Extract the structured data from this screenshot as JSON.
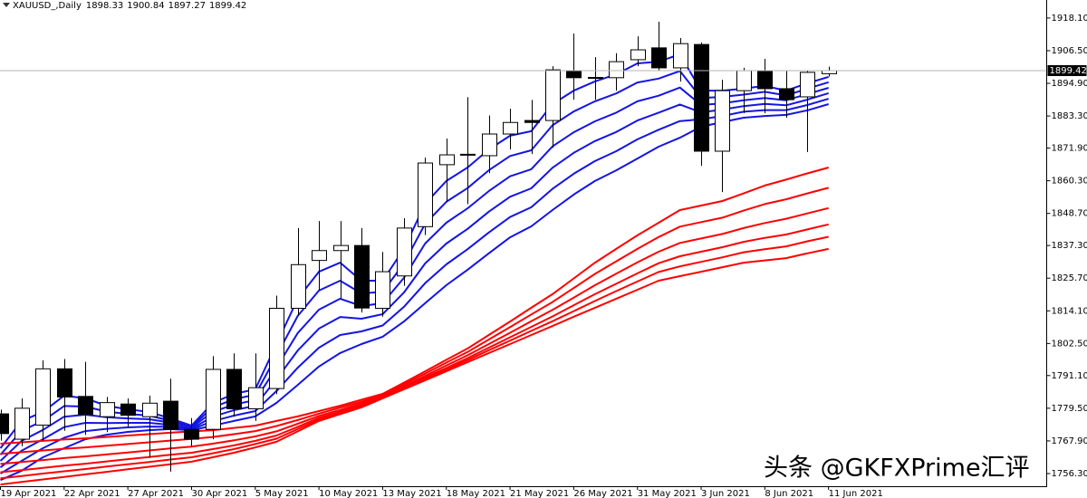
{
  "chart_data": {
    "type": "candlestick",
    "symbol": "XAUUSD_,Daily",
    "watermark": "头条 @GKFXPrime汇评",
    "categories": [
      "19 Apr 2021",
      null,
      null,
      "22 Apr 2021",
      null,
      null,
      "27 Apr 2021",
      null,
      null,
      "30 Apr 2021",
      null,
      null,
      "5 May 2021",
      null,
      null,
      "10 May 2021",
      null,
      null,
      "13 May 2021",
      null,
      null,
      "18 May 2021",
      null,
      null,
      "21 May 2021",
      null,
      null,
      "26 May 2021",
      null,
      null,
      "31 May 2021",
      null,
      null,
      "3 Jun 2021",
      null,
      null,
      "8 Jun 2021",
      null,
      null,
      "11 Jun 2021"
    ],
    "open": [
      1777.5,
      1768.5,
      1773.5,
      1793.5,
      1783.7,
      1776.5,
      1781,
      1776.5,
      1782,
      1772,
      1772,
      1793.3,
      1779.3,
      1786.5,
      1815,
      1832,
      1835.5,
      1837.3,
      1815,
      1826.5,
      1844,
      1866,
      1869.5,
      1869.2,
      1876.9,
      1881.7,
      1881.7,
      1899.4,
      1896.8,
      1896.9,
      1903.3,
      1907.5,
      1900.4,
      1908.7,
      1870.8,
      1892.3,
      1899.4,
      1893,
      1890.1,
      1898.33
    ],
    "high": [
      1779,
      1783,
      1796.5,
      1797,
      1796,
      1783.5,
      1783,
      1784,
      1790,
      1776,
      1798,
      1799,
      1799,
      1819.5,
      1843.5,
      1846,
      1846,
      1843.5,
      1835,
      1847,
      1868.5,
      1875.3,
      1890,
      1883.5,
      1885.9,
      1889,
      1901,
      1912.6,
      1904.2,
      1905.6,
      1911.6,
      1916.8,
      1911,
      1909.4,
      1896.2,
      1900.4,
      1903.6,
      1899.4,
      1899.4,
      1900.84
    ],
    "low": [
      1768,
      1766,
      1768,
      1771.5,
      1770,
      1771,
      1773,
      1762,
      1757,
      1766,
      1768.5,
      1776.5,
      1775,
      1784.5,
      1812.5,
      1821.5,
      1818.5,
      1813.5,
      1812,
      1823,
      1841,
      1853,
      1852,
      1863,
      1871.4,
      1869.8,
      1872,
      1889.1,
      1889.1,
      1892.3,
      1901,
      1899.4,
      1895.5,
      1865.6,
      1856.3,
      1884.3,
      1884.3,
      1882.7,
      1870.5,
      1897.27
    ],
    "close": [
      1770.5,
      1779.5,
      1793.5,
      1783.5,
      1777.3,
      1781.5,
      1777,
      1781.3,
      1772,
      1768.5,
      1793.3,
      1779.3,
      1786.8,
      1815,
      1830.5,
      1835.5,
      1837.3,
      1815.1,
      1828,
      1843.5,
      1866.6,
      1869.5,
      1869.7,
      1876.9,
      1881,
      1881,
      1899.7,
      1896.9,
      1897,
      1902.6,
      1906.8,
      1900.4,
      1909,
      1870.8,
      1892.3,
      1899.4,
      1893,
      1889.1,
      1898.8,
      1899.42
    ],
    "up_color": "#ffffff",
    "down_color": "#000000",
    "series": [
      {
        "color": "#1414e6",
        "values": [
          1765.3,
          1775.0,
          1778.2,
          1784.0,
          1783.0,
          1780.4,
          1779.1,
          1778.2,
          1775.9,
          1773.3,
          1781.4,
          1784.6,
          1786.2,
          1802.3,
          1818.4,
          1828.0,
          1831.2,
          1824.8,
          1824.8,
          1836.1,
          1852.1,
          1860.2,
          1865.0,
          1871.4,
          1876.3,
          1877.9,
          1887.5,
          1892.3,
          1895.6,
          1898.1,
          1902.0,
          1902.6,
          1905.2,
          1892.3,
          1892.3,
          1893.0,
          1894.0,
          1892.3,
          1894.9,
          1897.2
        ]
      },
      {
        "color": "#1414e6",
        "values": [
          1763.0,
          1771.5,
          1775.0,
          1780.3,
          1780.1,
          1778.3,
          1777.5,
          1776.9,
          1775.1,
          1773.0,
          1779.8,
          1782.7,
          1784.3,
          1798.1,
          1812.3,
          1821.3,
          1824.8,
          1820.3,
          1820.8,
          1830.9,
          1845.0,
          1852.8,
          1857.7,
          1864.0,
          1869.1,
          1871.1,
          1880.0,
          1884.9,
          1888.5,
          1891.3,
          1895.2,
          1896.6,
          1899.3,
          1889.7,
          1890.1,
          1890.9,
          1891.9,
          1890.6,
          1893.0,
          1895.3
        ]
      },
      {
        "color": "#1414e6",
        "values": [
          1760.8,
          1767.9,
          1771.8,
          1776.5,
          1777.2,
          1776.3,
          1775.9,
          1775.6,
          1774.4,
          1772.7,
          1778.2,
          1780.8,
          1782.4,
          1793.9,
          1806.2,
          1814.5,
          1818.4,
          1815.8,
          1816.8,
          1825.8,
          1838.0,
          1845.4,
          1850.5,
          1856.6,
          1861.9,
          1864.4,
          1872.5,
          1877.5,
          1881.4,
          1884.5,
          1888.5,
          1890.5,
          1893.4,
          1887.2,
          1887.8,
          1888.9,
          1889.7,
          1888.9,
          1891.1,
          1893.3
        ]
      },
      {
        "color": "#1414e6",
        "values": [
          1758.5,
          1764.4,
          1768.5,
          1772.8,
          1774.3,
          1774.2,
          1774.3,
          1774.3,
          1773.6,
          1772.3,
          1776.5,
          1778.8,
          1780.4,
          1789.8,
          1800.0,
          1807.8,
          1811.9,
          1811.3,
          1812.9,
          1820.6,
          1830.9,
          1838.0,
          1843.2,
          1849.3,
          1854.6,
          1857.6,
          1864.9,
          1870.2,
          1874.4,
          1877.6,
          1881.7,
          1884.5,
          1887.4,
          1884.6,
          1885.6,
          1886.8,
          1887.6,
          1887.1,
          1889.1,
          1891.4
        ]
      },
      {
        "color": "#1414e6",
        "values": [
          1756.3,
          1760.8,
          1765.3,
          1769.0,
          1771.4,
          1772.2,
          1772.7,
          1773.0,
          1772.9,
          1772.0,
          1774.9,
          1776.9,
          1778.5,
          1785.6,
          1793.9,
          1801.0,
          1805.5,
          1806.8,
          1808.9,
          1815.5,
          1823.9,
          1830.6,
          1836.0,
          1841.9,
          1847.4,
          1850.9,
          1857.4,
          1862.8,
          1867.3,
          1870.8,
          1875.0,
          1878.4,
          1881.5,
          1882.1,
          1883.3,
          1884.8,
          1885.4,
          1885.4,
          1887.2,
          1889.4
        ]
      },
      {
        "color": "#1414e6",
        "values": [
          1754.0,
          1757.3,
          1762.1,
          1765.3,
          1768.5,
          1770.1,
          1771.1,
          1771.7,
          1772.1,
          1771.7,
          1773.3,
          1775.0,
          1776.6,
          1781.4,
          1787.8,
          1794.3,
          1799.1,
          1802.3,
          1804.9,
          1810.3,
          1816.8,
          1823.2,
          1828.7,
          1834.5,
          1840.2,
          1844.1,
          1849.9,
          1855.4,
          1860.2,
          1864.0,
          1868.2,
          1872.4,
          1875.6,
          1879.5,
          1881.1,
          1882.7,
          1883.3,
          1883.7,
          1885.3,
          1887.5
        ]
      },
      {
        "color": "#ff0000",
        "values": [
          1766.9,
          1767.4,
          1767.9,
          1768.4,
          1768.8,
          1769.3,
          1769.8,
          1770.3,
          1770.8,
          1771.3,
          1771.7,
          1772.5,
          1773.3,
          1775.0,
          1776.6,
          1778.5,
          1780.4,
          1782.5,
          1784.6,
          1788.6,
          1792.6,
          1796.7,
          1800.7,
          1805.5,
          1810.3,
          1815.2,
          1820.0,
          1825.6,
          1831.2,
          1836.1,
          1840.9,
          1845.4,
          1849.9,
          1851.5,
          1853.1,
          1855.8,
          1858.6,
          1860.7,
          1862.9,
          1865.0
        ]
      },
      {
        "color": "#ff0000",
        "values": [
          1763.3,
          1763.9,
          1764.5,
          1765.1,
          1765.6,
          1766.2,
          1766.8,
          1767.4,
          1768.0,
          1768.6,
          1769.3,
          1770.3,
          1771.4,
          1773.2,
          1775.3,
          1777.6,
          1779.7,
          1781.8,
          1784.2,
          1788.0,
          1791.8,
          1795.7,
          1799.5,
          1803.9,
          1808.3,
          1812.8,
          1817.2,
          1822.2,
          1827.2,
          1831.7,
          1836.1,
          1840.3,
          1844.0,
          1845.6,
          1847.2,
          1849.7,
          1852.0,
          1853.7,
          1855.8,
          1857.8
        ]
      },
      {
        "color": "#ff0000",
        "values": [
          1759.7,
          1760.4,
          1761.1,
          1761.8,
          1762.4,
          1763.1,
          1763.8,
          1764.5,
          1765.2,
          1765.9,
          1766.9,
          1768.1,
          1769.5,
          1771.3,
          1774.0,
          1776.8,
          1778.9,
          1781.2,
          1783.8,
          1787.4,
          1791.0,
          1794.7,
          1798.3,
          1802.3,
          1806.3,
          1810.4,
          1814.4,
          1818.8,
          1823.2,
          1827.3,
          1831.3,
          1835.1,
          1838.2,
          1839.8,
          1841.4,
          1843.5,
          1845.3,
          1846.8,
          1848.7,
          1850.6
        ]
      },
      {
        "color": "#ff0000",
        "values": [
          1756.8,
          1757.5,
          1758.3,
          1759.1,
          1759.8,
          1760.6,
          1761.4,
          1762.2,
          1763.0,
          1763.7,
          1765.0,
          1766.3,
          1767.9,
          1769.8,
          1772.9,
          1776.1,
          1778.3,
          1780.6,
          1783.5,
          1786.9,
          1790.4,
          1793.8,
          1797.3,
          1801.0,
          1804.7,
          1808.4,
          1812.1,
          1816.1,
          1820.0,
          1823.7,
          1827.4,
          1831.0,
          1833.5,
          1835.1,
          1836.7,
          1838.6,
          1840.0,
          1841.2,
          1843.0,
          1844.8
        ]
      },
      {
        "color": "#ff0000",
        "values": [
          1754.6,
          1755.4,
          1756.3,
          1757.1,
          1757.9,
          1758.8,
          1759.6,
          1760.4,
          1761.3,
          1762.1,
          1763.5,
          1765.0,
          1766.8,
          1768.7,
          1772.1,
          1775.5,
          1777.9,
          1780.2,
          1783.2,
          1786.6,
          1789.9,
          1793.2,
          1796.6,
          1800.1,
          1803.5,
          1807.0,
          1810.4,
          1814.0,
          1817.6,
          1821.1,
          1824.5,
          1827.9,
          1829.9,
          1831.5,
          1833.1,
          1834.9,
          1836.0,
          1837.0,
          1838.8,
          1840.4
        ]
      },
      {
        "color": "#ff0000",
        "values": [
          1752.4,
          1753.3,
          1754.2,
          1755.1,
          1756.0,
          1756.9,
          1757.8,
          1758.7,
          1759.6,
          1760.5,
          1762.1,
          1763.7,
          1765.6,
          1767.6,
          1771.3,
          1775.0,
          1777.4,
          1779.8,
          1783.0,
          1786.2,
          1789.4,
          1792.6,
          1795.9,
          1799.1,
          1802.3,
          1805.5,
          1808.7,
          1812.0,
          1815.2,
          1818.4,
          1821.6,
          1824.8,
          1826.4,
          1828.0,
          1829.6,
          1831.2,
          1832.0,
          1832.8,
          1834.5,
          1836.1
        ]
      }
    ],
    "ylim": [
      1751.8,
      1924.5
    ],
    "yticks": [
      {
        "value": 1918.1,
        "label": "1918.10"
      },
      {
        "value": 1906.5,
        "label": "1906.50"
      },
      {
        "value": 1894.9,
        "label": "1894.90"
      },
      {
        "value": 1883.3,
        "label": "1883.30"
      },
      {
        "value": 1871.9,
        "label": "1871.90"
      },
      {
        "value": 1860.3,
        "label": "1860.30"
      },
      {
        "value": 1848.7,
        "label": "1848.70"
      },
      {
        "value": 1837.3,
        "label": "1837.30"
      },
      {
        "value": 1825.7,
        "label": "1825.70"
      },
      {
        "value": 1814.1,
        "label": "1814.10"
      },
      {
        "value": 1802.5,
        "label": "1802.50"
      },
      {
        "value": 1791.1,
        "label": "1791.10"
      },
      {
        "value": 1779.5,
        "label": "1779.50"
      },
      {
        "value": 1767.9,
        "label": "1767.90"
      },
      {
        "value": 1756.3,
        "label": "1756.30"
      }
    ],
    "grid": false
  }
}
